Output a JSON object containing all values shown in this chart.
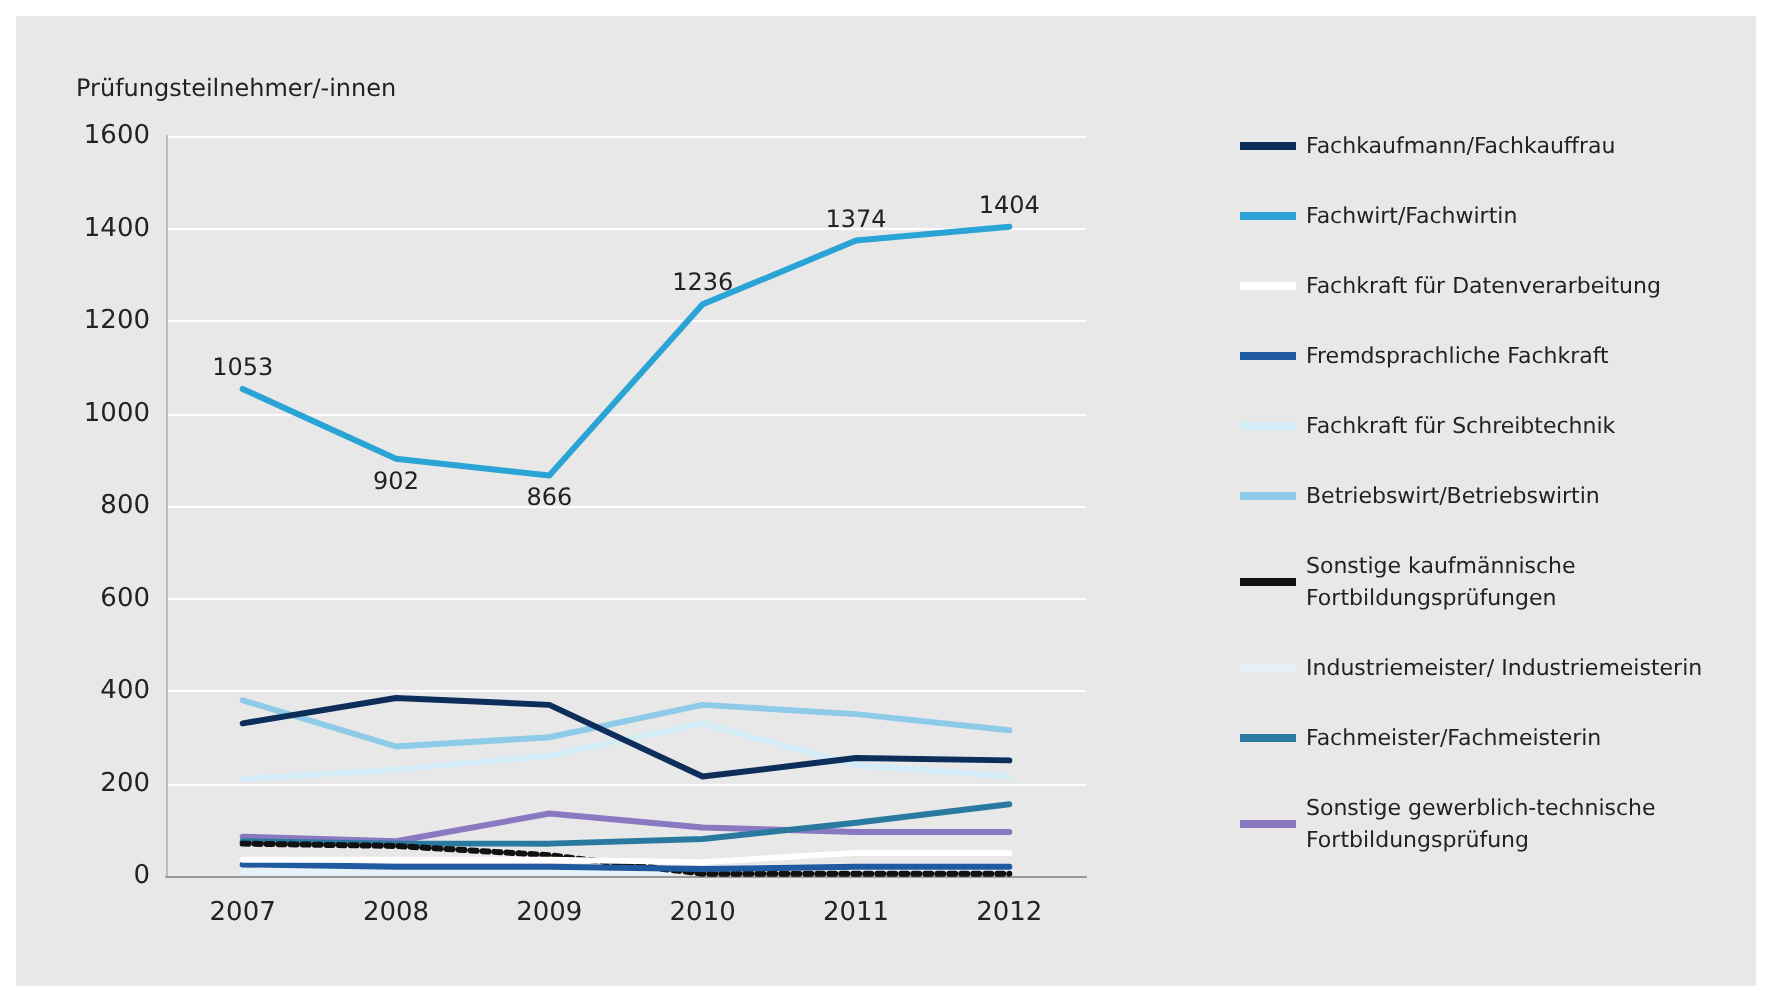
{
  "chart_data": {
    "type": "line",
    "ylabel": "Prüfungsteilnehmer/-innen",
    "categories": [
      "2007",
      "2008",
      "2009",
      "2010",
      "2011",
      "2012"
    ],
    "ylim": [
      0,
      1600
    ],
    "yticks": [
      0,
      200,
      400,
      600,
      800,
      1000,
      1200,
      1400,
      1600
    ],
    "grid": "y",
    "legend": "right",
    "line_style": "solid",
    "marker": "none",
    "series": [
      {
        "name": "Fachkaufmann/Fachkauffrau",
        "color": "#0d2e5a",
        "values": [
          330,
          385,
          370,
          215,
          255,
          250
        ]
      },
      {
        "name": "Fachwirt/Fachwirtin",
        "color": "#2aa3d5",
        "values": [
          1053,
          902,
          866,
          1236,
          1374,
          1404
        ],
        "value_labels": [
          "1053",
          "902",
          "866",
          "1236",
          "1374",
          "1404"
        ]
      },
      {
        "name": "Fachkraft für Datenverarbeitung",
        "color": "#ffffff",
        "values": [
          35,
          35,
          35,
          30,
          50,
          50
        ]
      },
      {
        "name": "Fremdsprachliche Fachkraft",
        "color": "#1f5aa0",
        "values": [
          25,
          20,
          20,
          15,
          20,
          20
        ]
      },
      {
        "name": "Fachkraft für Schreibtechnik",
        "color": "#d4ecf7",
        "values": [
          210,
          230,
          260,
          330,
          240,
          215
        ]
      },
      {
        "name": "Betriebswirt/Betriebswirtin",
        "color": "#8dcbe8",
        "values": [
          380,
          280,
          300,
          370,
          350,
          315
        ]
      },
      {
        "name": "Sonstige kaufmännische Fortbildungsprüfungen",
        "color": "#111111",
        "line_style": "dotted",
        "values": [
          70,
          65,
          45,
          5,
          5,
          5
        ]
      },
      {
        "name": "Industriemeister/ Industriemeisterin",
        "color": "#e6f2f8",
        "values": [
          10,
          10,
          10,
          10,
          10,
          10
        ]
      },
      {
        "name": "Fachmeister/Fachmeisterin",
        "color": "#2a7aa0",
        "values": [
          75,
          70,
          70,
          80,
          115,
          155
        ]
      },
      {
        "name": "Sonstige gewerblich-technische Fortbildungsprüfung",
        "color": "#8a78c0",
        "values": [
          85,
          75,
          135,
          105,
          95,
          95
        ]
      }
    ]
  }
}
